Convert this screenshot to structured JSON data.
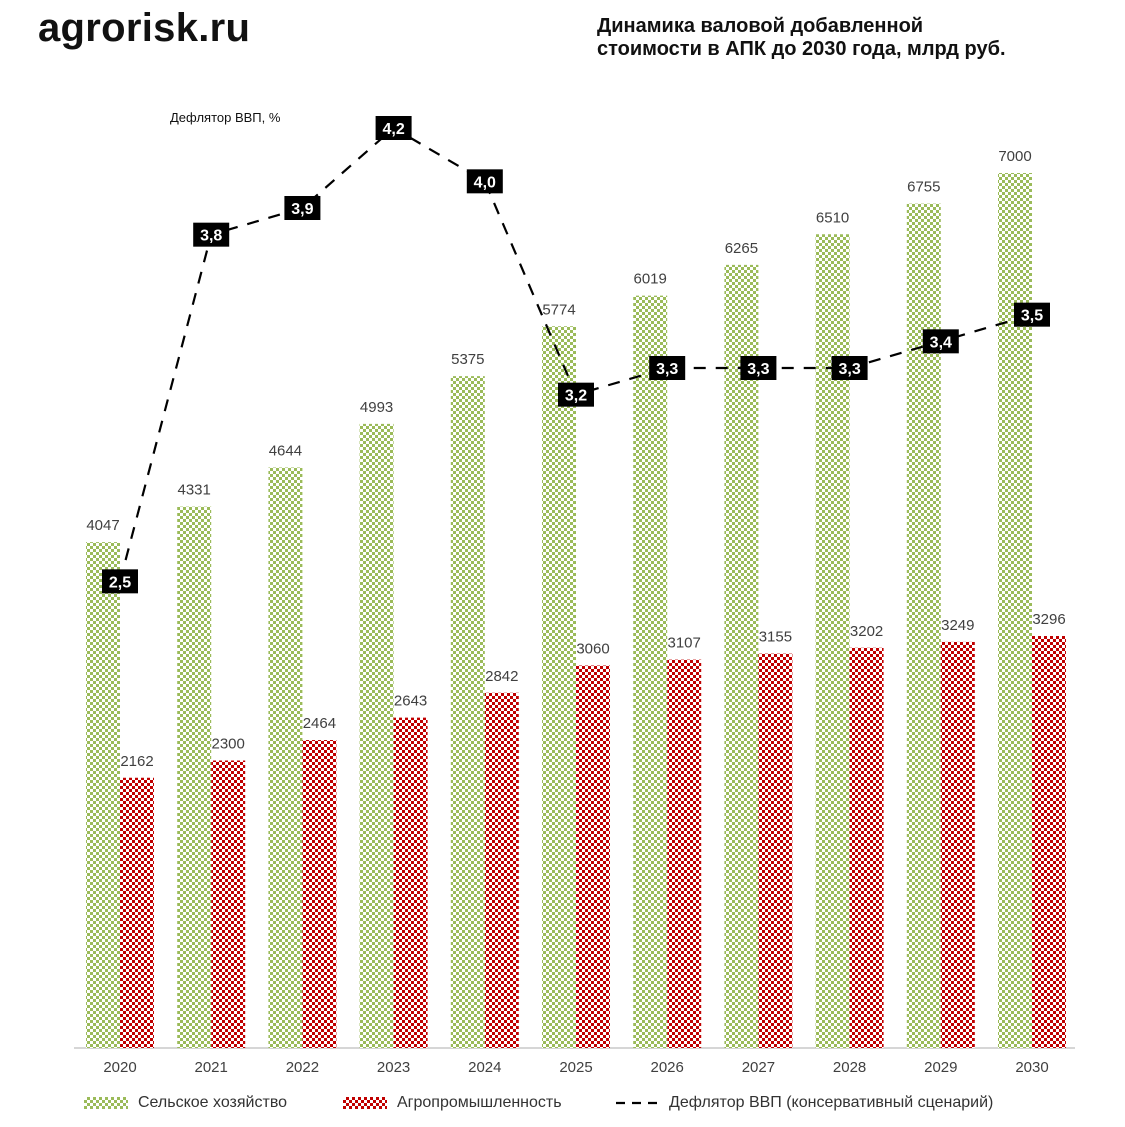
{
  "header": {
    "brand": "agrorisk.ru",
    "title_line1": "Динамика валовой добавленной",
    "title_line2": "стоимости в АПК до 2030 года, млрд руб."
  },
  "chart_data": {
    "type": "bar",
    "title": "Динамика валовой добавленной стоимости в АПК до 2030 года, млрд руб.",
    "categories": [
      "2020",
      "2021",
      "2022",
      "2023",
      "2024",
      "2025",
      "2026",
      "2027",
      "2028",
      "2029",
      "2030"
    ],
    "series": [
      {
        "name": "Сельское хозяйство",
        "type": "bar",
        "color": "#9bbb59",
        "pattern": "checker",
        "values": [
          4047,
          4331,
          4644,
          4993,
          5375,
          5774,
          6019,
          6265,
          6510,
          6755,
          7000
        ],
        "labels": [
          "4047",
          "4331",
          "4644",
          "4993",
          "5375",
          "5774",
          "6019",
          "6265",
          "6510",
          "6755",
          "7000"
        ]
      },
      {
        "name": "Агропромышленность",
        "type": "bar",
        "color": "#c00000",
        "pattern": "checker",
        "values": [
          2162,
          2300,
          2464,
          2643,
          2842,
          3060,
          3107,
          3155,
          3202,
          3249,
          3296
        ],
        "labels": [
          "2162",
          "2300",
          "2464",
          "2643",
          "2842",
          "3060",
          "3107",
          "3155",
          "3202",
          "3249",
          "3296"
        ]
      },
      {
        "name": "Дефлятор ВВП (консервативный сценарий)",
        "type": "line",
        "axis": "secondary",
        "style": "dashed",
        "color": "#000000",
        "values": [
          2.5,
          3.8,
          3.9,
          4.2,
          4.0,
          3.2,
          3.3,
          3.3,
          3.3,
          3.4,
          3.5
        ],
        "labels": [
          "2,5",
          "3,8",
          "3,9",
          "4,2",
          "4,0",
          "3,2",
          "3,3",
          "3,3",
          "3,3",
          "3,4",
          "3,5"
        ]
      }
    ],
    "ylim": [
      0,
      8000
    ],
    "y2lim": [
      0.75,
      4.5
    ],
    "grid": false,
    "y_axis_visible": false,
    "secondary_axis_label": "Дефлятор ВВП, %",
    "legend_position": "bottom"
  },
  "legend": {
    "items": [
      {
        "label": "Сельское хозяйство"
      },
      {
        "label": "Агропромышленность"
      },
      {
        "label": "Дефлятор ВВП (консервативный сценарий)"
      }
    ]
  }
}
